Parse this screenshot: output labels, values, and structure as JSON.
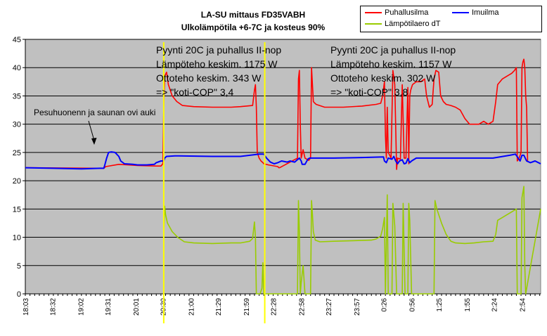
{
  "chart_data": {
    "type": "line",
    "title": [
      "LA-SU mittaus FD35VABH",
      "Ulkolämpötila +6-7C ja kosteus 90%"
    ],
    "xlabel": "",
    "ylabel": "",
    "ylim": [
      0,
      45
    ],
    "yticks": [
      0,
      5,
      10,
      15,
      20,
      25,
      30,
      35,
      40,
      45
    ],
    "x_tick_labels": [
      "18:03",
      "18:32",
      "19:02",
      "19:31",
      "20:01",
      "20:30",
      "21:00",
      "21:29",
      "21:59",
      "22:28",
      "22:58",
      "23:27",
      "23:57",
      "0:26",
      "0:56",
      "1:25",
      "1:55",
      "2:24",
      "2:54"
    ],
    "x_tick_positions_min": [
      0,
      29,
      59,
      88,
      118,
      147,
      177,
      206,
      236,
      265,
      295,
      324,
      354,
      383,
      413,
      442,
      472,
      501,
      531
    ],
    "x_range_min": [
      0,
      551
    ],
    "grid": true,
    "legend_position": "top-right",
    "background_color": "#c0c0c0",
    "series": [
      {
        "name": "Puhallusilma",
        "color": "#ff0000",
        "points": [
          [
            0,
            22.3
          ],
          [
            84,
            22.2
          ],
          [
            86,
            22.5
          ],
          [
            100,
            22.9
          ],
          [
            110,
            22.8
          ],
          [
            120,
            22.7
          ],
          [
            140,
            22.6
          ],
          [
            145,
            22.6
          ],
          [
            147,
            23
          ],
          [
            148,
            33
          ],
          [
            149,
            38.5
          ],
          [
            151,
            39.2
          ],
          [
            153,
            37
          ],
          [
            157,
            35
          ],
          [
            162,
            34
          ],
          [
            168,
            33.3
          ],
          [
            180,
            33.1
          ],
          [
            200,
            33
          ],
          [
            220,
            33
          ],
          [
            230,
            33.1
          ],
          [
            243,
            33.3
          ],
          [
            245,
            36
          ],
          [
            246,
            37
          ],
          [
            247,
            33
          ],
          [
            248,
            25
          ],
          [
            250,
            24
          ],
          [
            252,
            23.5
          ],
          [
            254,
            23.2
          ],
          [
            255,
            23
          ],
          [
            260,
            22.8
          ],
          [
            270,
            22.5
          ],
          [
            271,
            22.3
          ],
          [
            272,
            22.3
          ],
          [
            291,
            24
          ],
          [
            292,
            38
          ],
          [
            293,
            39.5
          ],
          [
            294,
            30
          ],
          [
            295,
            24
          ],
          [
            297,
            25.5
          ],
          [
            299,
            24
          ],
          [
            303,
            23.6
          ],
          [
            305,
            24
          ],
          [
            306,
            40
          ],
          [
            307,
            37
          ],
          [
            308,
            34
          ],
          [
            309,
            33.8
          ],
          [
            311,
            33.5
          ],
          [
            320,
            33
          ],
          [
            340,
            33
          ],
          [
            360,
            33.2
          ],
          [
            375,
            33.5
          ],
          [
            380,
            33.7
          ],
          [
            382,
            35
          ],
          [
            384,
            37.5
          ],
          [
            385,
            28
          ],
          [
            386,
            24
          ],
          [
            387,
            33
          ],
          [
            388,
            25
          ],
          [
            391,
            24
          ],
          [
            393,
            39.5
          ],
          [
            395,
            37
          ],
          [
            397,
            22
          ],
          [
            398,
            24
          ],
          [
            401,
            23.8
          ],
          [
            403,
            37
          ],
          [
            405,
            24
          ],
          [
            407,
            24
          ],
          [
            409,
            36.5
          ],
          [
            410,
            23
          ],
          [
            411,
            35
          ],
          [
            412,
            36
          ],
          [
            414,
            37
          ],
          [
            418,
            37.5
          ],
          [
            423,
            37.5
          ],
          [
            427,
            38
          ],
          [
            429,
            35
          ],
          [
            432,
            33
          ],
          [
            435,
            33.5
          ],
          [
            437,
            38
          ],
          [
            439,
            39.5
          ],
          [
            442,
            39.2
          ],
          [
            444,
            35
          ],
          [
            447,
            34
          ],
          [
            450,
            33.5
          ],
          [
            455,
            33.3
          ],
          [
            460,
            33
          ],
          [
            465,
            32.5
          ],
          [
            470,
            31
          ],
          [
            475,
            30
          ],
          [
            480,
            30
          ],
          [
            485,
            30
          ],
          [
            490,
            30.5
          ],
          [
            495,
            30
          ],
          [
            500,
            30.5
          ],
          [
            503,
            34
          ],
          [
            505,
            37
          ],
          [
            510,
            38
          ],
          [
            515,
            38.5
          ],
          [
            520,
            39
          ],
          [
            523,
            39.5
          ],
          [
            525,
            40
          ],
          [
            526,
            23.5
          ],
          [
            528,
            24
          ],
          [
            530,
            25
          ],
          [
            531,
            40
          ],
          [
            532,
            41
          ],
          [
            533,
            41.5
          ],
          [
            534,
            40
          ],
          [
            535,
            35
          ],
          [
            536,
            33
          ],
          [
            537,
            23.5
          ]
        ]
      },
      {
        "name": "Imuilma",
        "color": "#0000ff",
        "points": [
          [
            0,
            22.3
          ],
          [
            30,
            22.2
          ],
          [
            60,
            22.1
          ],
          [
            80,
            22.2
          ],
          [
            84,
            22.2
          ],
          [
            85,
            22.8
          ],
          [
            87,
            24
          ],
          [
            89,
            25
          ],
          [
            92,
            25.1
          ],
          [
            96,
            25
          ],
          [
            100,
            24.3
          ],
          [
            102,
            23.5
          ],
          [
            106,
            23
          ],
          [
            115,
            22.9
          ],
          [
            120,
            22.8
          ],
          [
            130,
            22.8
          ],
          [
            138,
            22.9
          ],
          [
            140,
            23.2
          ],
          [
            145,
            23.5
          ],
          [
            148,
            23.5
          ],
          [
            149,
            24
          ],
          [
            151,
            24.3
          ],
          [
            160,
            24.4
          ],
          [
            200,
            24.3
          ],
          [
            230,
            24.3
          ],
          [
            240,
            24.5
          ],
          [
            250,
            24.7
          ],
          [
            255,
            24.7
          ],
          [
            258,
            24
          ],
          [
            262,
            23.3
          ],
          [
            266,
            23
          ],
          [
            270,
            23.2
          ],
          [
            274,
            23.5
          ],
          [
            280,
            23.3
          ],
          [
            283,
            23.5
          ],
          [
            288,
            23.3
          ],
          [
            290,
            23.6
          ],
          [
            293,
            24
          ],
          [
            295,
            23.5
          ],
          [
            296,
            22.9
          ],
          [
            299,
            22.9
          ],
          [
            302,
            23.8
          ],
          [
            304,
            24
          ],
          [
            330,
            24
          ],
          [
            360,
            24.1
          ],
          [
            383,
            24.2
          ],
          [
            384,
            23.5
          ],
          [
            386,
            23.2
          ],
          [
            388,
            24
          ],
          [
            392,
            23.8
          ],
          [
            394,
            24.3
          ],
          [
            396,
            23.5
          ],
          [
            398,
            23
          ],
          [
            400,
            23.5
          ],
          [
            403,
            23.7
          ],
          [
            405,
            23
          ],
          [
            407,
            23.1
          ],
          [
            409,
            23.9
          ],
          [
            411,
            23.2
          ],
          [
            413,
            23.5
          ],
          [
            416,
            23.8
          ],
          [
            418,
            24
          ],
          [
            440,
            24
          ],
          [
            470,
            24
          ],
          [
            500,
            24
          ],
          [
            518,
            24.5
          ],
          [
            524,
            24.7
          ],
          [
            527,
            24
          ],
          [
            529,
            23.5
          ],
          [
            531,
            24.5
          ],
          [
            533,
            24.5
          ],
          [
            536,
            23.5
          ],
          [
            540,
            23.2
          ],
          [
            545,
            23.5
          ],
          [
            551,
            23
          ]
        ]
      },
      {
        "name": "Lämpötilaero dT",
        "color": "#99cc00",
        "points": [
          [
            148,
            0
          ],
          [
            148,
            10.5
          ],
          [
            149,
            15.5
          ],
          [
            150,
            14
          ],
          [
            152,
            12.5
          ],
          [
            157,
            11
          ],
          [
            163,
            10
          ],
          [
            170,
            9.2
          ],
          [
            180,
            9
          ],
          [
            200,
            8.9
          ],
          [
            220,
            9
          ],
          [
            230,
            9
          ],
          [
            240,
            9.3
          ],
          [
            243,
            9.8
          ],
          [
            245,
            12.7
          ],
          [
            246,
            10
          ],
          [
            247,
            0
          ],
          [
            251,
            0
          ],
          [
            253,
            1
          ],
          [
            254,
            5.5
          ],
          [
            255,
            0
          ],
          [
            291,
            0
          ],
          [
            292,
            16.5
          ],
          [
            293,
            11
          ],
          [
            294,
            0
          ],
          [
            295,
            2
          ],
          [
            297,
            5
          ],
          [
            299,
            0
          ],
          [
            305,
            0
          ],
          [
            306,
            16.5
          ],
          [
            307,
            14
          ],
          [
            308,
            11
          ],
          [
            310,
            9.5
          ],
          [
            315,
            9.2
          ],
          [
            330,
            9.3
          ],
          [
            350,
            9.4
          ],
          [
            370,
            9.5
          ],
          [
            375,
            9.7
          ],
          [
            380,
            10.2
          ],
          [
            382,
            11.5
          ],
          [
            384,
            13.5
          ],
          [
            385,
            0
          ],
          [
            387,
            17.5
          ],
          [
            388,
            0
          ],
          [
            391,
            0
          ],
          [
            392,
            0
          ],
          [
            393,
            16
          ],
          [
            395,
            12
          ],
          [
            397,
            0
          ],
          [
            403,
            0
          ],
          [
            404,
            16
          ],
          [
            406,
            0
          ],
          [
            409,
            0
          ],
          [
            410,
            16
          ],
          [
            411,
            13
          ],
          [
            413,
            0
          ],
          [
            437,
            0
          ],
          [
            438,
            16.5
          ],
          [
            440,
            15
          ],
          [
            442,
            14
          ],
          [
            445,
            12.5
          ],
          [
            450,
            10.5
          ],
          [
            455,
            9.3
          ],
          [
            460,
            9
          ],
          [
            470,
            8.9
          ],
          [
            480,
            9
          ],
          [
            490,
            9.2
          ],
          [
            500,
            9.3
          ],
          [
            503,
            10.5
          ],
          [
            505,
            13
          ],
          [
            510,
            13.5
          ],
          [
            515,
            14
          ],
          [
            520,
            14.5
          ],
          [
            523,
            14.8
          ],
          [
            525,
            15
          ],
          [
            526,
            0
          ],
          [
            528,
            0
          ],
          [
            530,
            0
          ],
          [
            531,
            17
          ],
          [
            533,
            19
          ],
          [
            534,
            5
          ],
          [
            535,
            0
          ],
          [
            551,
            15
          ]
        ]
      }
    ],
    "vertical_markers": [
      {
        "x": 148,
        "color": "#ffff00"
      },
      {
        "x": 256,
        "color": "#ffff00"
      }
    ],
    "annotations": [
      {
        "lines": [
          "Pyynti 20C ja puhallus II-nop",
          "Lämpöteho keskim. 1175 W",
          "Ottoteho keskim. 343 W",
          "=> \"koti-COP\" 3,4"
        ]
      },
      {
        "lines": [
          "Pyynti 20C ja puhallus II-nop",
          "Lämpöteho keskim. 1157 W",
          "Ottoteho keskim. 302 W",
          "=> \"koti-COP\" 3,8"
        ]
      },
      {
        "lines": [
          "Pesuhuonenn ja saunan ovi auki"
        ]
      }
    ]
  }
}
